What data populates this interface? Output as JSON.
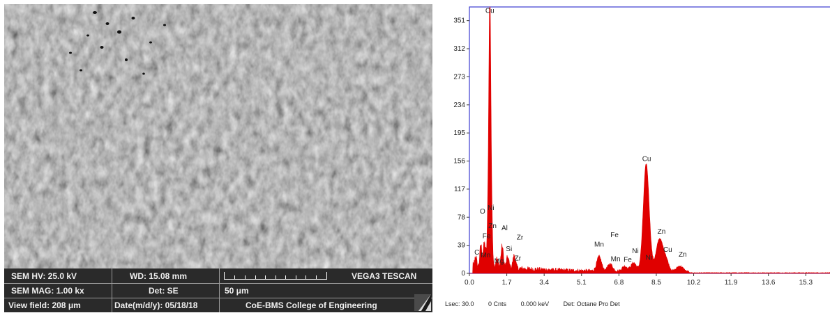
{
  "sem": {
    "hv": "SEM HV: 25.0 kV",
    "wd": "WD: 15.08 mm",
    "brand": "VEGA3 TESCAN",
    "mag": "SEM MAG: 1.00 kx",
    "det": "Det: SE",
    "scale_label": "50 μm",
    "view_field": "View field: 208 μm",
    "date": "Date(m/d/y): 05/18/18",
    "institution": "CoE-BMS College of Engineering"
  },
  "chart_data": {
    "type": "line",
    "title": "",
    "xlabel": "",
    "ylabel": "",
    "xlim": [
      0,
      16.4
    ],
    "ylim": [
      0,
      370
    ],
    "x_ticks": [
      "0.0",
      "1.7",
      "3.4",
      "5.1",
      "6.8",
      "8.5",
      "10.2",
      "11.9",
      "13.6",
      "15.3"
    ],
    "y_ticks": [
      "0",
      "39",
      "78",
      "117",
      "156",
      "195",
      "234",
      "273",
      "312",
      "351"
    ],
    "peaks": [
      {
        "label": "C",
        "x": 0.28,
        "y": 14
      },
      {
        "label": "O",
        "x": 0.52,
        "y": 30
      },
      {
        "label": "Mn",
        "x": 0.64,
        "y": 18
      },
      {
        "label": "Fe",
        "x": 0.71,
        "y": 25
      },
      {
        "label": "Cu",
        "x": 0.93,
        "y": 355
      },
      {
        "label": "Ni",
        "x": 0.85,
        "y": 58
      },
      {
        "label": "Zn",
        "x": 1.01,
        "y": 52
      },
      {
        "label": "Mg",
        "x": 1.25,
        "y": 12
      },
      {
        "label": "Al",
        "x": 1.49,
        "y": 30
      },
      {
        "label": "Si",
        "x": 1.74,
        "y": 15
      },
      {
        "label": "Zr",
        "x": 2.04,
        "y": 18
      },
      {
        "label": "Mn",
        "x": 5.9,
        "y": 20
      },
      {
        "label": "Fe",
        "x": 6.4,
        "y": 10
      },
      {
        "label": "Fe",
        "x": 7.06,
        "y": 7
      },
      {
        "label": "Ni",
        "x": 7.47,
        "y": 12
      },
      {
        "label": "Cu",
        "x": 8.04,
        "y": 148
      },
      {
        "label": "Ni",
        "x": 8.26,
        "y": 6
      },
      {
        "label": "Zn",
        "x": 8.63,
        "y": 42
      },
      {
        "label": "Cu",
        "x": 8.9,
        "y": 20
      },
      {
        "label": "Zn",
        "x": 9.57,
        "y": 8
      }
    ],
    "peak_labels": [
      {
        "text": "Cu",
        "x": 0.93,
        "y": 362
      },
      {
        "text": "O",
        "x": 0.6,
        "y": 83
      },
      {
        "text": "Ni",
        "x": 0.98,
        "y": 88
      },
      {
        "text": "Fe",
        "x": 0.78,
        "y": 49
      },
      {
        "text": "Zn",
        "x": 1.05,
        "y": 63
      },
      {
        "text": "Al",
        "x": 1.6,
        "y": 60
      },
      {
        "text": "Zr",
        "x": 2.3,
        "y": 47
      },
      {
        "text": "C",
        "x": 0.34,
        "y": 26
      },
      {
        "text": "Mn",
        "x": 0.74,
        "y": 22
      },
      {
        "text": "Mg",
        "x": 1.35,
        "y": 14
      },
      {
        "text": "Si",
        "x": 1.8,
        "y": 31
      },
      {
        "text": "Zr",
        "x": 2.2,
        "y": 18
      },
      {
        "text": "Mn",
        "x": 5.9,
        "y": 37
      },
      {
        "text": "Fe",
        "x": 6.6,
        "y": 50
      },
      {
        "text": "Mn",
        "x": 6.65,
        "y": 17
      },
      {
        "text": "Fe",
        "x": 7.2,
        "y": 16
      },
      {
        "text": "Ni",
        "x": 7.55,
        "y": 28
      },
      {
        "text": "Cu",
        "x": 8.06,
        "y": 156
      },
      {
        "text": "Ni",
        "x": 8.16,
        "y": 19
      },
      {
        "text": "Zn",
        "x": 8.74,
        "y": 55
      },
      {
        "text": "Cu",
        "x": 9.02,
        "y": 30
      },
      {
        "text": "Zn",
        "x": 9.7,
        "y": 23
      }
    ],
    "colors": {
      "spectrum": "#e00000",
      "frame": "#3a3ad0",
      "axis": "#333333"
    },
    "grid": false
  },
  "eds_footer": {
    "lsec": "Lsec: 30.0",
    "cnts": "0 Cnts",
    "kev": "0.000 keV",
    "det": "Det: Octane Pro Det"
  }
}
